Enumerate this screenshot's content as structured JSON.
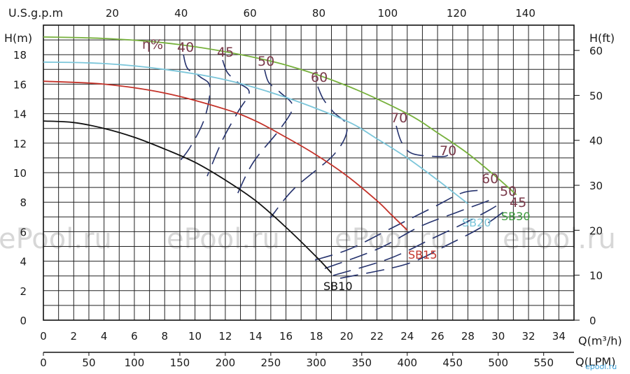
{
  "chart_data": {
    "type": "line",
    "title": "",
    "x_axes": {
      "m3h": {
        "label": "Q(m³/h)",
        "range": [
          0,
          35
        ],
        "ticks": [
          0,
          2,
          4,
          6,
          8,
          10,
          12,
          14,
          16,
          18,
          20,
          22,
          24,
          26,
          28,
          30,
          32,
          34
        ]
      },
      "lpm": {
        "label": "Q(LPM)",
        "range": [
          0,
          583.3
        ],
        "ticks": [
          0,
          50,
          100,
          150,
          200,
          250,
          300,
          350,
          400,
          450,
          500,
          550
        ]
      },
      "usgpm": {
        "label": "U.S.g.p.m",
        "range": [
          0,
          154.1
        ],
        "ticks": [
          20,
          40,
          60,
          80,
          100,
          120,
          140
        ]
      }
    },
    "y_axes": {
      "m": {
        "label": "H(m)",
        "range": [
          0,
          20
        ],
        "ticks": [
          0,
          2,
          4,
          6,
          8,
          10,
          12,
          14,
          16,
          18
        ]
      },
      "ft": {
        "label": "H(ft)",
        "range": [
          0,
          65.6
        ],
        "ticks": [
          0,
          10,
          20,
          30,
          40,
          50,
          60
        ]
      }
    },
    "grid": true,
    "series": [
      {
        "name": "SB10",
        "color": "#111111",
        "x": [
          0,
          2,
          4,
          6,
          8,
          10,
          12,
          14,
          16,
          18,
          19
        ],
        "y": [
          13.5,
          13.4,
          13.0,
          12.4,
          11.6,
          10.7,
          9.5,
          8.1,
          6.3,
          4.3,
          3.2
        ]
      },
      {
        "name": "SB15",
        "color": "#c4332a",
        "x": [
          0,
          4,
          8,
          12,
          14,
          16,
          18,
          20,
          22,
          23,
          24
        ],
        "y": [
          16.2,
          16.0,
          15.4,
          14.3,
          13.5,
          12.4,
          11.2,
          9.8,
          8.1,
          7.1,
          6.1
        ]
      },
      {
        "name": "SB20",
        "color": "#7cc6da",
        "x": [
          0,
          4,
          8,
          12,
          16,
          20,
          22,
          24,
          26,
          27,
          28
        ],
        "y": [
          17.5,
          17.4,
          17.0,
          16.3,
          15.1,
          13.5,
          12.3,
          11.0,
          9.5,
          8.7,
          7.9
        ]
      },
      {
        "name": "SB30",
        "color": "#77b13c",
        "x": [
          0,
          4,
          8,
          12,
          16,
          20,
          24,
          26,
          28,
          30,
          31.2
        ],
        "y": [
          19.2,
          19.1,
          18.8,
          18.2,
          17.3,
          15.9,
          14.0,
          12.7,
          11.3,
          9.6,
          8.5
        ]
      }
    ],
    "efficiency_labels": [
      "η%",
      "40",
      "45",
      "50",
      "60",
      "70",
      "70",
      "60",
      "50",
      "45"
    ],
    "watermarks": [
      "ePool.ru",
      "ePool.ru",
      "ePool.ru",
      "ePool.ru"
    ],
    "corner_mark": "epool.ru"
  }
}
